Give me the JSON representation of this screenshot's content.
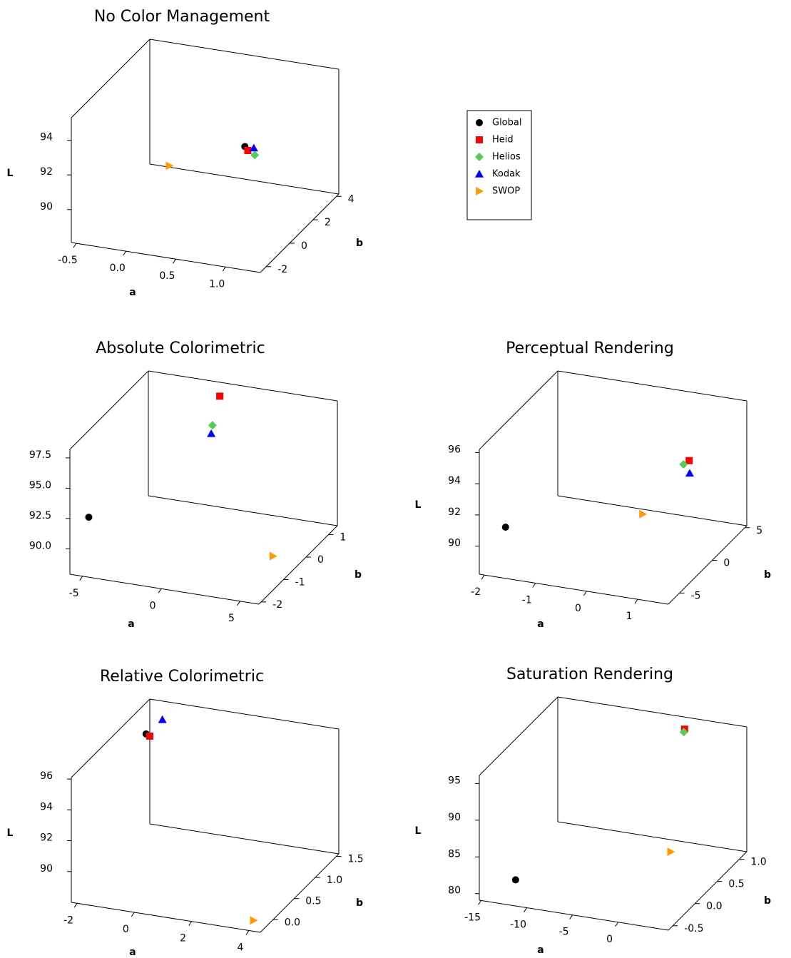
{
  "chart_data": [
    {
      "type": "scatter3d",
      "title": "No Color Management",
      "xlabel": "a",
      "ylabel": "b",
      "zlabel": "L",
      "xlim": [
        -0.55,
        1.35
      ],
      "ylim": [
        -2.5,
        4.2
      ],
      "zlim": [
        88.1,
        95.3
      ],
      "xticks": [
        -0.5,
        {
          "value": 0,
          "label": "0.0"
        },
        0.5,
        {
          "value": 1,
          "label": "1.0"
        }
      ],
      "yticks": [
        -2,
        0,
        2,
        4
      ],
      "zticks": [
        90,
        92,
        94
      ],
      "series": [
        {
          "name": "Global",
          "color": "#000000",
          "marker": "circle",
          "x": 0.8,
          "y": 0.85,
          "z": 92.6
        },
        {
          "name": "Heid",
          "color": "#ff0000",
          "marker": "square",
          "x": 0.83,
          "y": 0.85,
          "z": 92.4
        },
        {
          "name": "Helios",
          "color": "#55cc55",
          "marker": "diamond",
          "x": 0.9,
          "y": 0.85,
          "z": 92.2
        },
        {
          "name": "Kodak",
          "color": "#0000ff",
          "marker": "triangle-up",
          "x": 0.89,
          "y": 0.85,
          "z": 92.6
        },
        {
          "name": "SWOP",
          "color": "#ff9900",
          "marker": "triangle-right",
          "x": 0.04,
          "y": 0.85,
          "z": 90.8
        }
      ]
    },
    {
      "type": "scatter3d",
      "title": "Absolute Colorimetric",
      "xlabel": "a",
      "ylabel": "b",
      "xlim": [
        -5.8,
        6.2
      ],
      "ylim": [
        -2.1,
        1.4
      ],
      "zlim": [
        87.9,
        98.2
      ],
      "xticks": [
        -5,
        0,
        5
      ],
      "yticks": [
        -2,
        -1,
        0,
        1
      ],
      "zticks": [
        {
          "value": 90,
          "label": "90.0"
        },
        92.5,
        {
          "value": 95,
          "label": "95.0"
        },
        97.5
      ],
      "series": [
        {
          "x": -5.1,
          "y": -1.75,
          "z": 92.1
        },
        {
          "x": -0.77,
          "y": 1.05,
          "z": 97.8
        },
        {
          "x": -1.23,
          "y": 1.05,
          "z": 95.3
        },
        {
          "x": -1.31,
          "y": 1.05,
          "z": 94.6
        },
        {
          "x": 4.6,
          "y": -0.35,
          "z": 88.3
        }
      ]
    },
    {
      "type": "scatter3d",
      "title": "Perceptual Rendering",
      "xlabel": "a",
      "ylabel": "b",
      "zlabel": "L",
      "xlim": [
        -2.1,
        1.6
      ],
      "ylim": [
        -6.7,
        5.3
      ],
      "zlim": [
        88.2,
        96.2
      ],
      "xticks": [
        -2,
        -1,
        0,
        1
      ],
      "yticks": [
        -5,
        0,
        5
      ],
      "zticks": [
        90,
        92,
        94,
        96
      ],
      "series": [
        {
          "x": -1.74,
          "y": -5.5,
          "z": 90.9
        },
        {
          "x": 1.24,
          "y": -0.7,
          "z": 94.7
        },
        {
          "x": 1.13,
          "y": -0.7,
          "z": 94.4
        },
        {
          "x": 1.25,
          "y": -0.7,
          "z": 93.9
        },
        {
          "x": 0.33,
          "y": -0.7,
          "z": 90.8
        }
      ]
    },
    {
      "type": "scatter3d",
      "title": "Relative Colorimetric",
      "xlabel": "a",
      "ylabel": "b",
      "zlabel": "L",
      "xlim": [
        -2.2,
        4.4
      ],
      "ylim": [
        -0.3,
        1.56
      ],
      "zlim": [
        88.0,
        96.1
      ],
      "xticks": [
        -2,
        0,
        2,
        4
      ],
      "yticks": [
        {
          "value": 0,
          "label": "0.0"
        },
        0.5,
        {
          "value": 1,
          "label": "1.0"
        },
        1.5
      ],
      "zticks": [
        90,
        92,
        94,
        96
      ],
      "series": [
        {
          "x": -2.05,
          "y": 1.37,
          "z": 94.4
        },
        {
          "x": -1.92,
          "y": 1.37,
          "z": 94.3
        },
        {
          "x": null,
          "y": null,
          "z": null
        },
        {
          "x": -1.48,
          "y": 1.37,
          "z": 95.5
        },
        {
          "x": 3.88,
          "y": -0.11,
          "z": 88.1
        }
      ]
    },
    {
      "type": "scatter3d",
      "title": "Saturation Rendering",
      "xlabel": "a",
      "ylabel": "b",
      "zlabel": "L",
      "xlim": [
        -15.2,
        5.5
      ],
      "ylim": [
        -0.6,
        1.17
      ],
      "zlim": [
        79.1,
        96.1
      ],
      "xticks": [
        -15,
        -10,
        -5,
        0
      ],
      "yticks": [
        -0.5,
        {
          "value": 0,
          "label": "0.0"
        },
        0.5,
        {
          "value": 1,
          "label": "1.0"
        }
      ],
      "zticks": [
        80,
        85,
        90,
        95
      ],
      "series": [
        {
          "x": -12.1,
          "y": -0.42,
          "z": 81.4
        },
        {
          "x": -0.44,
          "y": 0.99,
          "z": 95.7
        },
        {
          "x": -0.52,
          "y": 0.99,
          "z": 95.3
        },
        {
          "x": null,
          "y": null,
          "z": null
        },
        {
          "x": 1.44,
          "y": 0.29,
          "z": 83.6
        }
      ]
    }
  ]
}
